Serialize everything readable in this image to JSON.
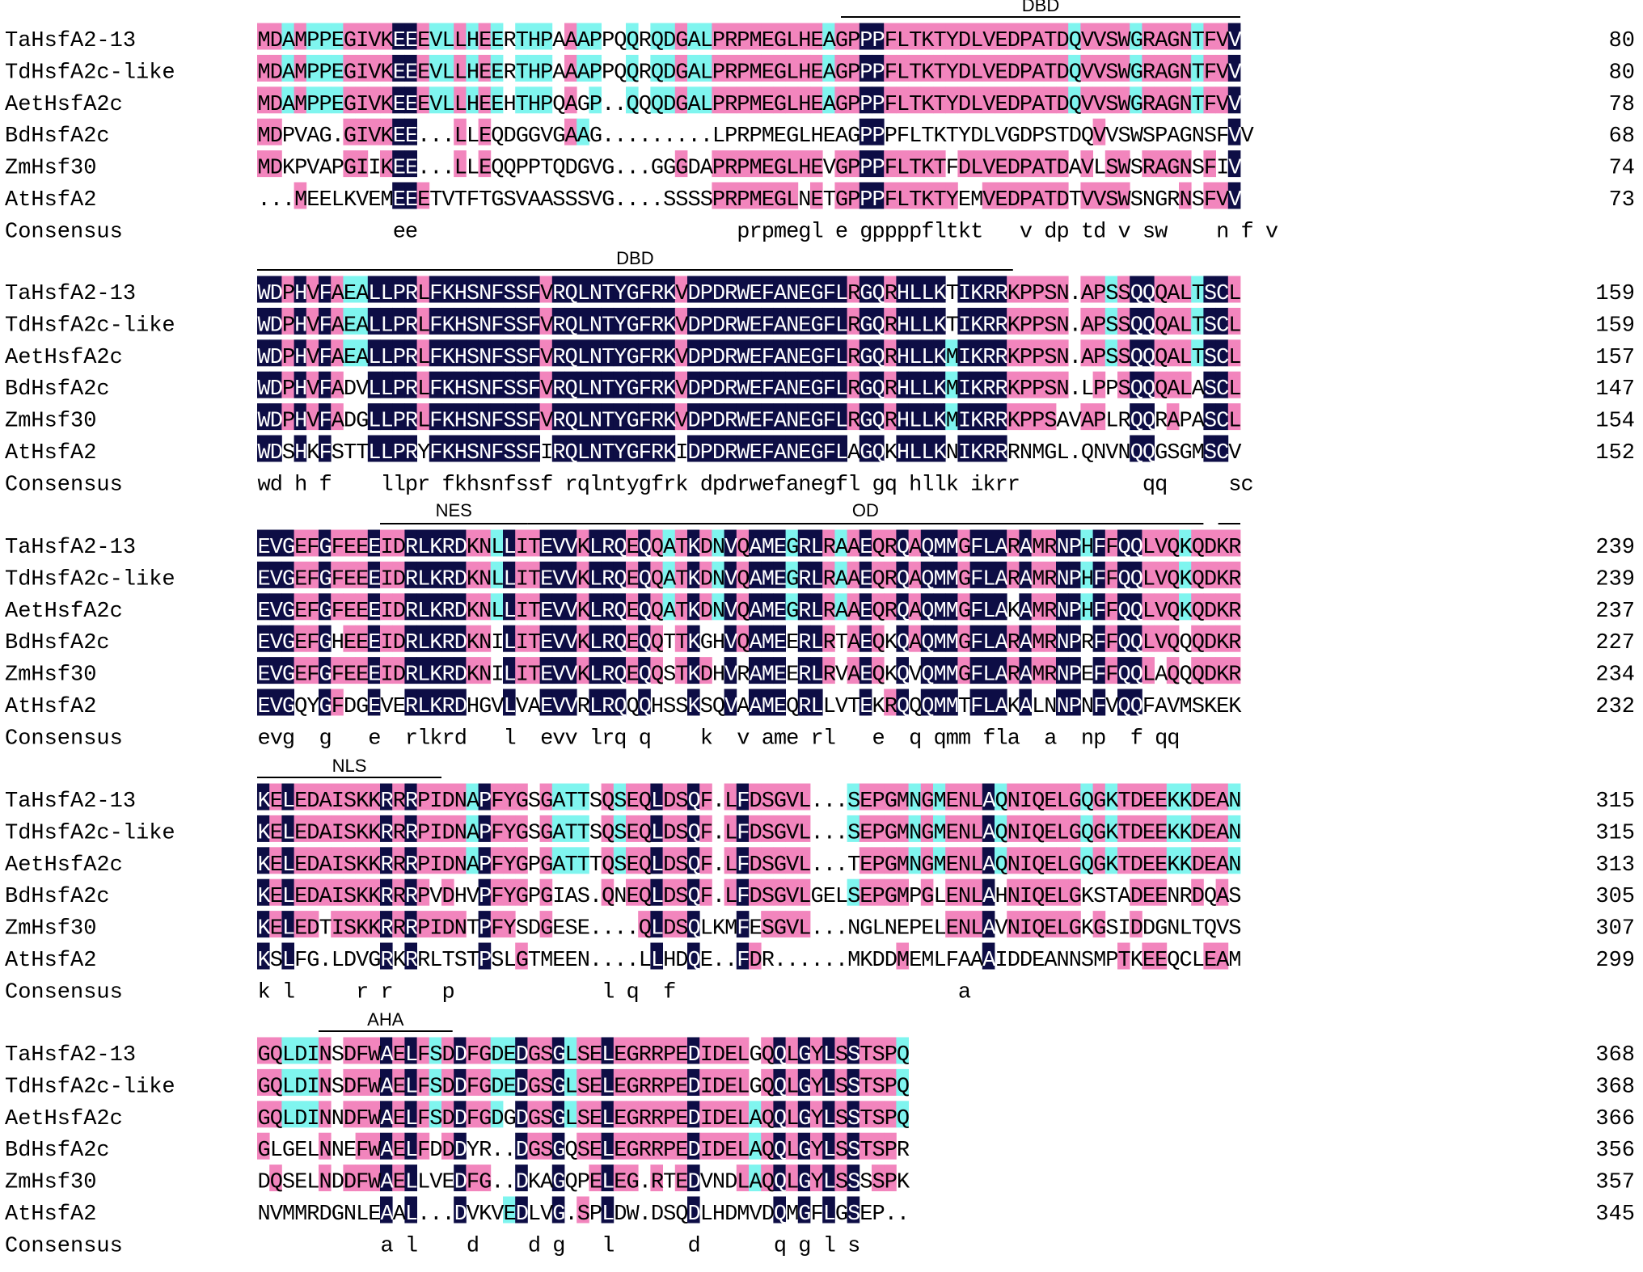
{
  "colors": {
    "identical": "#0d0d45",
    "high": "#f285bd",
    "medium": "#7ff5ef",
    "text_on_dark": "#ffffff",
    "text_default": "#000000"
  },
  "species": [
    "TaHsfA2-13",
    "TdHsfA2c-like",
    "AetHsfA2c",
    "BdHsfA2c",
    "ZmHsf30",
    "AtHsfA2"
  ],
  "consensus_label": "Consensus",
  "blocks": [
    {
      "seqs": [
        "MDAMPPEGIVKEEEVLLHEERTHPAAAPPQQRQDGALPRPMEGLHEAGPPPFLTKTYDLVEDPATDQVVSWGRAGNTFVV",
        "MDAMPPEGIVKEEEVLLHEERTHPAAAPPQQRQDGALPRPMEGLHEAGPPPFLTKTYDLVEDPATDQVVSWGRAGNTFVV",
        "MDAMPPEGIVKEEEVLLHEEHTHPQAGP..QQQDGALPRPMEGLHEAGPPPFLTKTYDLVEDPATDQVVSWGRAGNTFVV",
        "MDPVAG.GIVKEE...LLEQDGGVGAAG.........LPRPMEGLHEAGPPPFLTKTYDLVGDPSTDQVVSWSPAGNSFVV",
        "MDKPVAPGIIKEE...LLEQQPPTQDGVG...GGGDAPRPMEGLHEVGPPPFLTKTFDLVEDPATDAVLSWSRAGNSFIV",
        "...MEELKVEMEEETVTFTGSVAASSSVG....SSSSPRPMEGLNETGPPPFLTKTYEMVEDPATDTVVSWSNGRNSFVV"
      ],
      "consensus": "           ee                          prpmegl e gppppfltkt   v dp td v sw    n f v",
      "ends": [
        "80",
        "80",
        "78",
        "68",
        "74",
        "73"
      ],
      "annotations": [
        {
          "label": "DBD"
        }
      ]
    },
    {
      "seqs": [
        "WDPHVFAEALLPRLFKHSNFSSFVRQLNTYGFRKVDPDRWEFANEGFLRGQRHLLKTIKRRKPPSN.APSSQQQALTSCL",
        "WDPHVFAEALLPRLFKHSNFSSFVRQLNTYGFRKVDPDRWEFANEGFLRGQRHLLKTIKRRKPPSN.APSSQQQALTSCL",
        "WDPHVFAEALLPRLFKHSNFSSFVRQLNTYGFRKVDPDRWEFANEGFLRGQRHLLKMIKRRKPPSN.APSSQQQALTSCL",
        "WDPHVFADVLLPRLFKHSNFSSFVRQLNTYGFRKVDPDRWEFANEGFLRGQRHLLKMIKRRKPPSN.LPPSQQQALASCL",
        "WDPHVFADGLLPRLFKHSNFSSFVRQLNTYGFRKVDPDRWEFANEGFLRGQRHLLKMIKRRKPPSAVAPLRQQRAPASCL",
        "WDSHKFSTTLLPRYFKHSNFSSFIRQLNTYGFRKIDPDRWEFANEGFLAGQKHLLKNIKRRRNMGL.QNVNQQGSGMSCV"
      ],
      "consensus": "wd h f    llpr fkhsnfssf rqlntygfrk dpdrwefanegfl gq hllk ikrr          qq     sc",
      "ends": [
        "159",
        "159",
        "157",
        "147",
        "154",
        "152"
      ],
      "annotations": [
        {
          "label": "DBD"
        }
      ]
    },
    {
      "seqs": [
        "EVGEFGFEEEIDRLKRDKNLLITEVVKLRQEQQATKDNVQAMEGRLRAAEQRQAQMMGFLARAMRNPHFFQQLVQKQDKR",
        "EVGEFGFEEEIDRLKRDKNLLITEVVKLRQEQQATKDNVQAMEGRLRAAEQRQAQMMGFLARAMRNPHFFQQLVQKQDKR",
        "EVGEFGFEEEIDRLKRDKNLLITEVVKLRQEQQATKDNVQAMEGRLRAAEQRQAQMMGFLAKAMRNPHFFQQLVQKQDKR",
        "EVGEFGHEEEIDRLKRDKNILITEVVKLRQEQQTTKGHVQAMEERLRTAEQKQAQMMGFLARAMRNPRFFQQLVQQQDKR",
        "EVGEFGFEEEIDRLKRDKNILITEVVKLRQEQQSTKDHVRAMEERLRVAEQKQVQMMGFLARAMRNPEFFQQLAQQQDKR",
        "EVGQYGFDGEVERLKRDHGVLVAEVVRLRQQQHSSKSQVAAMEQRLLVTEKRQQQMMTFLAKALNNPNFVQQFAVMSKEK"
      ],
      "consensus": "evg  g   e  rlkrd   l  evv lrq q    k  v ame rl   e  q qmm fla  a  np  f qq",
      "ends": [
        "239",
        "239",
        "237",
        "227",
        "234",
        "232"
      ],
      "annotations": [
        {
          "label": "NES"
        },
        {
          "label": "OD"
        }
      ]
    },
    {
      "seqs": [
        "KELEDAISKKRRRPIDNAPFYGSGATTSQSEQLDSQF.LFDSGVL...SEPGMNGMENLAQNIQELGQGKTDEEKKDEAN",
        "KELEDAISKKRRRPIDNAPFYGSGATTSQSEQLDSQF.LFDSGVL...SEPGMNGMENLAQNIQELGQGKTDEEKKDEAN",
        "KELEDAISKKRRRPIDNAPFYGPGATTTQSEQLDSQF.LFDSGVL...TEPGMNGMENLAQNIQELGQGKTDEEKKDEAN",
        "KELEDAISKKRRRPVDHVPFYGPGIAS.QNEQLDSQF.LFDSGVLGELSEPGMPGLENLAHNIQELGKSTADEENRDQAS",
        "KELEDTISKKRRRPIDNTPFYSDGESE....QLDSQLKMFESGVL...NGLNEPELENLAVNIQELGKGSIDDGNLTQVS",
        "KSLFG.LDVGRKRRLTSTPSLGTMEEN....LLHDQE..FDR......MKDDMEMLFAAAIDDEANNSMPTKEEQCLEAM"
      ],
      "consensus": "k l     r r    p            l q  f                       a",
      "ends": [
        "315",
        "315",
        "313",
        "305",
        "307",
        "299"
      ],
      "annotations": [
        {
          "label": "NLS"
        }
      ]
    },
    {
      "seqs": [
        "GQLDINSDFWAELFSDDFGDEDGSGLSELEGRRPEDIDELGQQLGYLSSTSPQ",
        "GQLDINSDFWAELFSDDFGDEDGSGLSELEGRRPEDIDELGQQLGYLSSTSPQ",
        "GQLDINNDFWAELFSDDFGDGDGSGLSELEGRRPEDIDELAQQLGYLSSTSPQ",
        "GLGELNNEFWAELFDDDYR..DGSGQSELEGRRPEDIDELAQQLGYLSSTSPR",
        "DQSELNDDFWAELLVEDFG..DKAGQPELEG.RTEDVNDLAQQLGYLSSSSPK",
        "NVMMRDGNLEAAL...DVKVEDLVG.SPLDW.DSQDLHDMVDQMGFLGSEP.."
      ],
      "consensus": "          a l    d    d g   l      d      q g l s",
      "ends": [
        "368",
        "368",
        "366",
        "356",
        "357",
        "345"
      ],
      "annotations": [
        {
          "label": "AHA"
        }
      ]
    }
  ]
}
